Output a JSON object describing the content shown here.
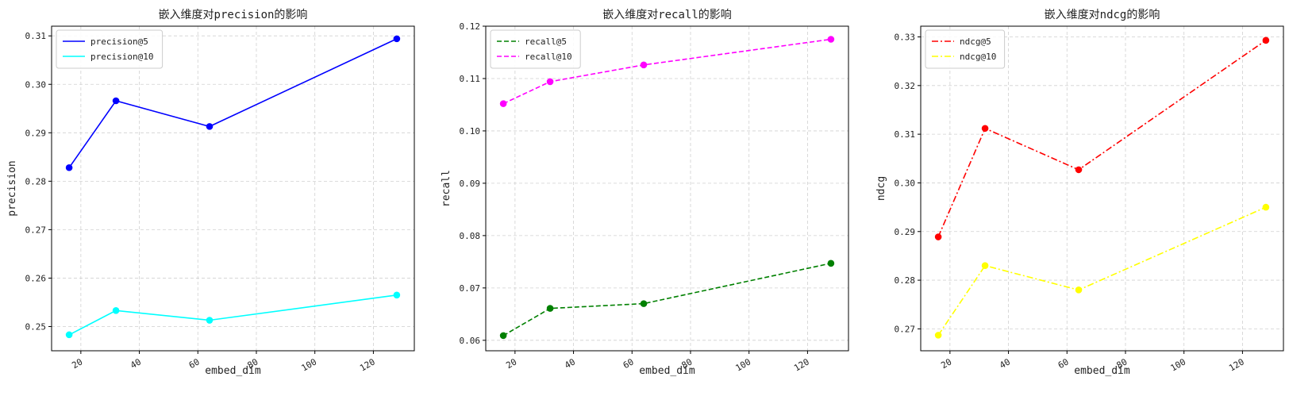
{
  "chart_data": [
    {
      "type": "line",
      "title": "嵌入维度对precision的影响",
      "xlabel": "embed_dim",
      "ylabel": "precision",
      "x": [
        16,
        32,
        64,
        128
      ],
      "xlim": [
        10,
        134
      ],
      "xticks": [
        20,
        40,
        60,
        80,
        100,
        120
      ],
      "ylim": [
        0.245,
        0.312
      ],
      "yticks": [
        0.25,
        0.26,
        0.27,
        0.28,
        0.29,
        0.3,
        0.31
      ],
      "ytick_format": 2,
      "grid": true,
      "legend_position": "top-left",
      "series": [
        {
          "name": "precision@5",
          "values": [
            0.2828,
            0.2966,
            0.2913,
            0.3094
          ],
          "color": "#0000ff",
          "dash": "solid"
        },
        {
          "name": "precision@10",
          "values": [
            0.2483,
            0.2533,
            0.2513,
            0.2565
          ],
          "color": "#00ffff",
          "dash": "solid"
        }
      ]
    },
    {
      "type": "line",
      "title": "嵌入维度对recall的影响",
      "xlabel": "embed_dim",
      "ylabel": "recall",
      "x": [
        16,
        32,
        64,
        128
      ],
      "xlim": [
        10,
        134
      ],
      "xticks": [
        20,
        40,
        60,
        80,
        100,
        120
      ],
      "ylim": [
        0.058,
        0.12
      ],
      "yticks": [
        0.06,
        0.07,
        0.08,
        0.09,
        0.1,
        0.11,
        0.12
      ],
      "ytick_format": 2,
      "grid": true,
      "legend_position": "top-left",
      "series": [
        {
          "name": "recall@5",
          "values": [
            0.0609,
            0.0661,
            0.067,
            0.0747
          ],
          "color": "#008000",
          "dash": "dashed"
        },
        {
          "name": "recall@10",
          "values": [
            0.1052,
            0.1094,
            0.1126,
            0.1175
          ],
          "color": "#ff00ff",
          "dash": "dashed"
        }
      ]
    },
    {
      "type": "line",
      "title": "嵌入维度对ndcg的影响",
      "xlabel": "embed_dim",
      "ylabel": "ndcg",
      "x": [
        16,
        32,
        64,
        128
      ],
      "xlim": [
        10,
        134
      ],
      "xticks": [
        20,
        40,
        60,
        80,
        100,
        120
      ],
      "ylim": [
        0.2655,
        0.3322
      ],
      "yticks": [
        0.27,
        0.28,
        0.29,
        0.3,
        0.31,
        0.32,
        0.33
      ],
      "ytick_format": 2,
      "grid": true,
      "legend_position": "top-left",
      "series": [
        {
          "name": "ndcg@5",
          "values": [
            0.2889,
            0.3112,
            0.3027,
            0.3293
          ],
          "color": "#ff0000",
          "dash": "dashdot"
        },
        {
          "name": "ndcg@10",
          "values": [
            0.2687,
            0.283,
            0.278,
            0.295
          ],
          "color": "#ffff00",
          "dash": "dashdot"
        }
      ]
    }
  ]
}
